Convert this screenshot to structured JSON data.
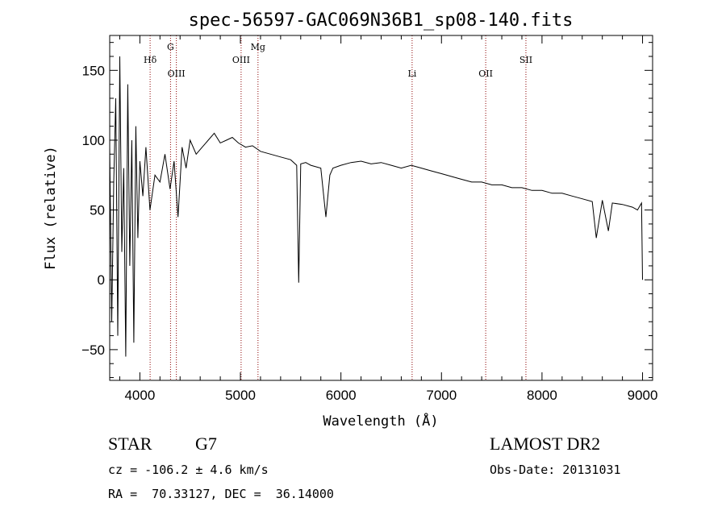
{
  "chart_data": {
    "type": "line",
    "title": "spec-56597-GAC069N36B1_sp08-140.fits",
    "xlabel": "Wavelength (Å)",
    "ylabel": "Flux (relative)",
    "xlim": [
      3700,
      9100
    ],
    "ylim": [
      -72,
      175
    ],
    "xticks": [
      4000,
      5000,
      6000,
      7000,
      8000,
      9000
    ],
    "yticks": [
      -50,
      0,
      50,
      100,
      150
    ],
    "grid": false,
    "line_color": "#000000",
    "marker_color": "#8b0000",
    "spectral_lines": [
      {
        "name": "Hδ",
        "wavelength": 4102,
        "label_row": 1
      },
      {
        "name": "G",
        "wavelength": 4305,
        "label_row": 0
      },
      {
        "name": "OIII",
        "wavelength": 4363,
        "label_row": 2
      },
      {
        "name": "OIII",
        "wavelength": 5007,
        "label_row": 1
      },
      {
        "name": "Mg",
        "wavelength": 5175,
        "label_row": 0
      },
      {
        "name": "Li",
        "wavelength": 6708,
        "label_row": 2
      },
      {
        "name": "OII",
        "wavelength": 7440,
        "label_row": 2
      },
      {
        "name": "SII",
        "wavelength": 7840,
        "label_row": 1
      }
    ],
    "series": [
      {
        "x": [
          3700,
          3720,
          3740,
          3760,
          3780,
          3800,
          3820,
          3840,
          3860,
          3880,
          3900,
          3920,
          3940,
          3960,
          3980,
          4000,
          4030,
          4060,
          4100,
          4150,
          4200,
          4250,
          4300,
          4340,
          4380,
          4420,
          4460,
          4500,
          4560,
          4620,
          4680,
          4740,
          4800,
          4860,
          4920,
          4980,
          5050,
          5120,
          5200,
          5300,
          5400,
          5500,
          5560,
          5580,
          5600,
          5650,
          5700,
          5800,
          5850,
          5890,
          5920,
          6000,
          6100,
          6200,
          6300,
          6400,
          6500,
          6600,
          6700,
          6800,
          6900,
          7000,
          7100,
          7200,
          7300,
          7400,
          7500,
          7600,
          7700,
          7800,
          7900,
          8000,
          8100,
          8200,
          8300,
          8400,
          8500,
          8540,
          8600,
          8660,
          8700,
          8800,
          8900,
          8950,
          8990,
          9000
        ],
        "y": [
          95,
          -30,
          70,
          130,
          -40,
          160,
          20,
          80,
          -55,
          140,
          10,
          100,
          -45,
          110,
          30,
          85,
          60,
          95,
          50,
          75,
          70,
          90,
          65,
          85,
          45,
          95,
          80,
          100,
          90,
          95,
          100,
          105,
          98,
          100,
          102,
          98,
          95,
          96,
          92,
          90,
          88,
          86,
          82,
          -2,
          83,
          84,
          82,
          80,
          45,
          75,
          80,
          82,
          84,
          85,
          83,
          84,
          82,
          80,
          82,
          80,
          78,
          76,
          74,
          72,
          70,
          70,
          68,
          68,
          66,
          66,
          64,
          64,
          62,
          62,
          60,
          58,
          56,
          30,
          57,
          35,
          55,
          54,
          52,
          50,
          55,
          0
        ]
      }
    ]
  },
  "info": {
    "object_type": "STAR",
    "subclass": "G7",
    "survey": "LAMOST DR2",
    "redshift": "cz = -106.2 ± 4.6 km/s",
    "obs_date": "Obs-Date: 20131031",
    "coords": "RA =  70.33127, DEC =  36.14000"
  }
}
